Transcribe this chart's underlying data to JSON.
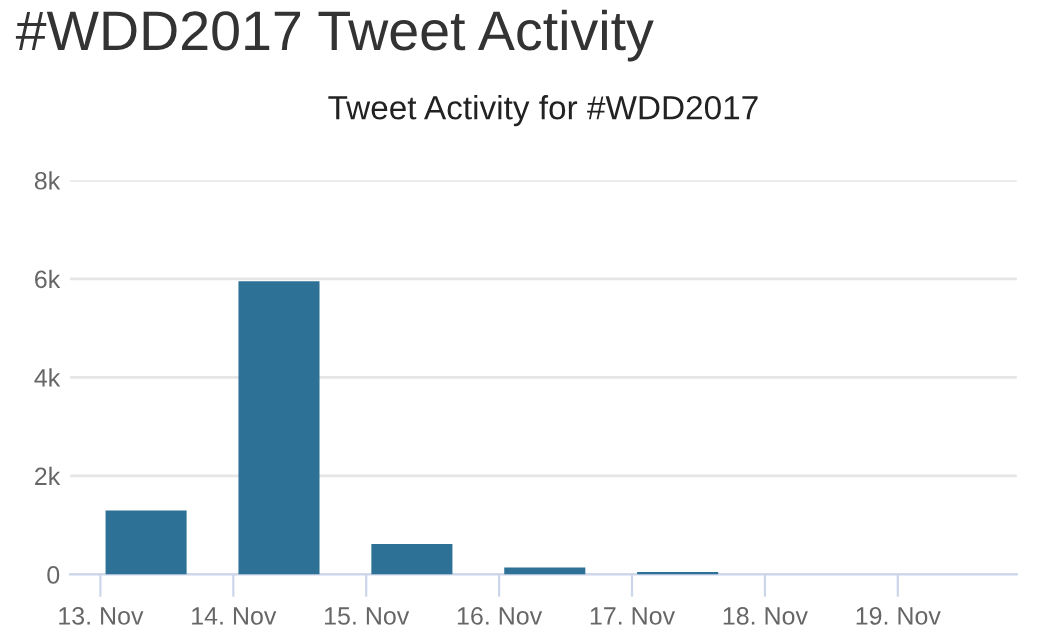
{
  "chart_data": {
    "type": "bar",
    "title": "#WDD2017 Tweet Activity",
    "subtitle": "Tweet Activity for #WDD2017",
    "x": [
      "2017-11-13T08:15",
      "2017-11-14T08:15",
      "2017-11-15T08:15",
      "2017-11-16T08:15",
      "2017-11-17T08:15"
    ],
    "values": [
      1300,
      5950,
      620,
      140,
      50
    ],
    "color": "#2e7196",
    "xlim": [
      "2017-11-12T18:30",
      "2017-11-19T21:30"
    ],
    "xticks": [
      {
        "value": "2017-11-13",
        "label": "13. Nov"
      },
      {
        "value": "2017-11-14",
        "label": "14. Nov"
      },
      {
        "value": "2017-11-15",
        "label": "15. Nov"
      },
      {
        "value": "2017-11-16",
        "label": "16. Nov"
      },
      {
        "value": "2017-11-17",
        "label": "17. Nov"
      },
      {
        "value": "2017-11-18",
        "label": "18. Nov"
      },
      {
        "value": "2017-11-19",
        "label": "19. Nov"
      }
    ],
    "ylim": [
      0,
      8000
    ],
    "yticks": [
      0,
      {
        "value": 2000,
        "label": "2k"
      },
      {
        "value": 4000,
        "label": "4k"
      },
      {
        "value": 6000,
        "label": "6k"
      },
      {
        "value": 8000,
        "label": "8k"
      }
    ],
    "grid": "y",
    "legend": false
  }
}
